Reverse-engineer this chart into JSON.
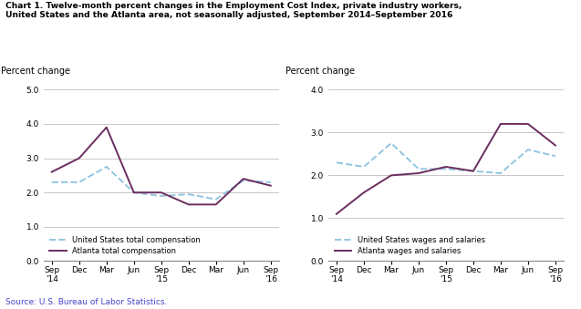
{
  "title_line1": "Chart 1. Twelve-month percent changes in the Employment Cost Index, private industry workers,",
  "title_line2": "United States and the Atlanta area, not seasonally adjusted, September 2014–September 2016",
  "source": "Source: U.S. Bureau of Labor Statistics.",
  "x_labels": [
    "Sep\n'14",
    "Dec",
    "Mar",
    "Jun",
    "Sep\n'15",
    "Dec",
    "Mar",
    "Jun",
    "Sep\n'16"
  ],
  "left_chart": {
    "ylabel": "Percent change",
    "ylim": [
      0.0,
      5.0
    ],
    "yticks": [
      0.0,
      1.0,
      2.0,
      3.0,
      4.0,
      5.0
    ],
    "us_total_comp": [
      2.3,
      2.3,
      2.75,
      2.0,
      1.9,
      1.95,
      1.8,
      2.35,
      2.3
    ],
    "atlanta_total_comp": [
      2.6,
      3.0,
      3.9,
      2.0,
      2.0,
      1.65,
      1.65,
      2.4,
      2.2
    ],
    "legend1": "United States total compensation",
    "legend2": "Atlanta total compensation"
  },
  "right_chart": {
    "ylabel": "Percent change",
    "ylim": [
      0.0,
      4.0
    ],
    "yticks": [
      0.0,
      1.0,
      2.0,
      3.0,
      4.0
    ],
    "us_wages": [
      2.3,
      2.2,
      2.75,
      2.15,
      2.15,
      2.1,
      2.05,
      2.6,
      2.45
    ],
    "atlanta_wages": [
      1.1,
      1.6,
      2.0,
      2.05,
      2.2,
      2.1,
      3.2,
      3.2,
      2.7
    ],
    "legend1": "United States wages and salaries",
    "legend2": "Atlanta wages and salaries"
  },
  "us_color": "#92C5E0",
  "atlanta_color": "#6B2D5E",
  "title_color": "#000000",
  "source_color": "#4444CC",
  "background_color": "#FFFFFF",
  "plot_bg_color": "#FFFFFF",
  "grid_color": "#BEBEBE"
}
